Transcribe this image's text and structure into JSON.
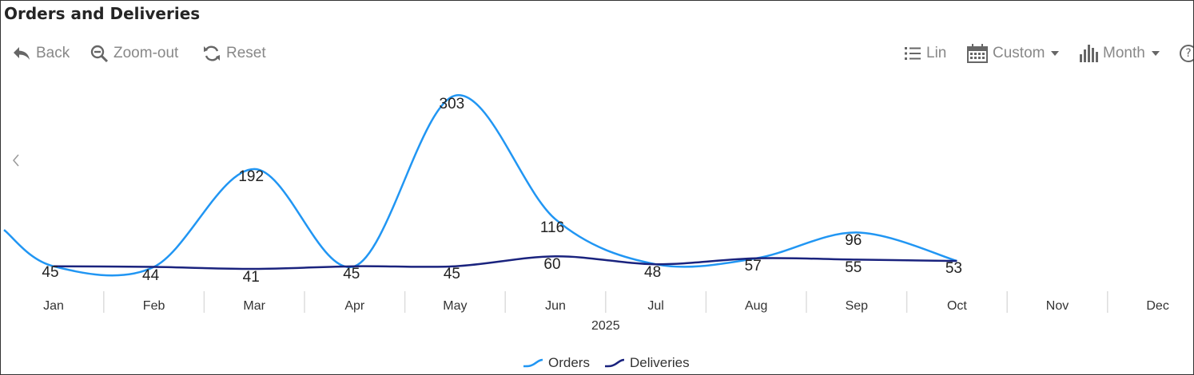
{
  "window": {
    "title": "Orders and Deliveries"
  },
  "toolbar": {
    "back_label": "Back",
    "zoom_out_label": "Zoom-out",
    "reset_label": "Reset",
    "scale_label": "Lin",
    "range_label": "Custom",
    "period_label": "Month",
    "help_label": "?"
  },
  "colors": {
    "orders": "#2196f3",
    "deliveries": "#1a237e",
    "toolbar_icon": "#666666",
    "axis": "#dddddd"
  },
  "chart_data": {
    "type": "line",
    "smooth": true,
    "title": "Orders and Deliveries",
    "x_group_label": "2025",
    "categories": [
      "Jan",
      "Feb",
      "Mar",
      "Apr",
      "May",
      "Jun",
      "Jul",
      "Aug",
      "Sep",
      "Oct",
      "Nov",
      "Dec"
    ],
    "series": [
      {
        "name": "Orders",
        "values": [
          45,
          44,
          192,
          45,
          303,
          116,
          48,
          57,
          96,
          53,
          null,
          null
        ]
      },
      {
        "name": "Deliveries",
        "values": [
          45,
          44,
          41,
          45,
          45,
          60,
          48,
          57,
          55,
          53,
          null,
          null
        ]
      }
    ],
    "data_labels": [
      "45",
      "44",
      "192",
      "45",
      "303",
      "116",
      "48",
      "57",
      "96",
      "53"
    ],
    "data_labels_lower": [
      "",
      "",
      "41",
      "",
      "45",
      "60",
      "",
      "",
      "55",
      ""
    ],
    "legend": "bottom",
    "grid": false,
    "ylim": [
      0,
      330
    ]
  }
}
